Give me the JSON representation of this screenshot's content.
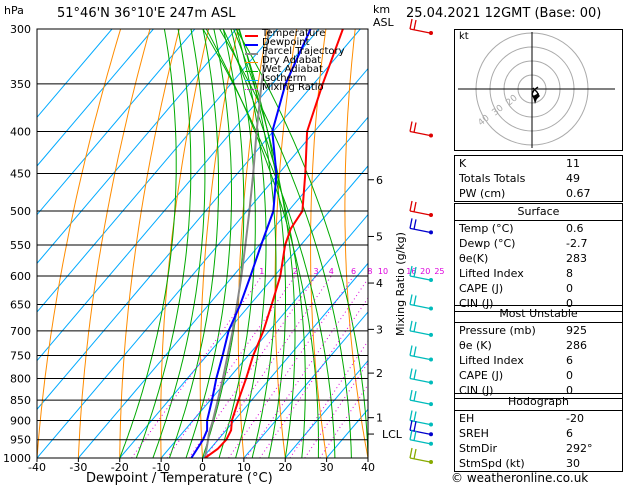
{
  "header": {
    "hpa_label": "hPa",
    "location": "51°46'N 36°10'E 247m ASL",
    "km_label": "km",
    "asl_label": "ASL",
    "datetime": "25.04.2021 12GMT (Base: 00)"
  },
  "legend": {
    "items": [
      {
        "label": "Temperature",
        "color": "#ff0000"
      },
      {
        "label": "Dewpoint",
        "color": "#0000ff"
      },
      {
        "label": "Parcel Trajectory",
        "color": "#888888"
      },
      {
        "label": "Dry Adiabat",
        "color": "#ff8c00"
      },
      {
        "label": "Wet Adiabat",
        "color": "#00aa00"
      },
      {
        "label": "Isotherm",
        "color": "#00aaff"
      },
      {
        "label": "Mixing Ratio",
        "color": "#dd00dd"
      }
    ]
  },
  "chart_data": {
    "type": "skew-t",
    "xlabel": "Dewpoint / Temperature (°C)",
    "ylabel": "hPa",
    "right_label": "Mixing Ratio (g/kg)",
    "xlim": [
      -40,
      40
    ],
    "ylim": [
      1000,
      300
    ],
    "x_ticks": [
      "-40",
      "-30",
      "-20",
      "-10",
      "0",
      "10",
      "20",
      "30",
      "40"
    ],
    "pressure_levels": [
      "300",
      "350",
      "400",
      "450",
      "500",
      "550",
      "600",
      "650",
      "700",
      "750",
      "800",
      "850",
      "900",
      "950",
      "1000"
    ],
    "km_ticks": [
      {
        "label": "6",
        "p": 458
      },
      {
        "label": "5",
        "p": 537
      },
      {
        "label": "4",
        "p": 612
      },
      {
        "label": "3",
        "p": 697
      },
      {
        "label": "2",
        "p": 788
      },
      {
        "label": "1",
        "p": 893
      }
    ],
    "lcl": {
      "label": "LCL",
      "p": 935
    },
    "mixing_ratio_labels": [
      "1",
      "2",
      "3",
      "4",
      "6",
      "8",
      "10",
      "16",
      "20",
      "25"
    ],
    "temperature": [
      {
        "p": 1000,
        "t": 0.6
      },
      {
        "p": 975,
        "t": 1.8
      },
      {
        "p": 950,
        "t": 2.0
      },
      {
        "p": 925,
        "t": 1.2
      },
      {
        "p": 900,
        "t": -0.6
      },
      {
        "p": 850,
        "t": -3.2
      },
      {
        "p": 800,
        "t": -5.8
      },
      {
        "p": 750,
        "t": -8.8
      },
      {
        "p": 700,
        "t": -11.4
      },
      {
        "p": 650,
        "t": -14.8
      },
      {
        "p": 600,
        "t": -18.6
      },
      {
        "p": 550,
        "t": -23.8
      },
      {
        "p": 525,
        "t": -25.8
      },
      {
        "p": 500,
        "t": -26.6
      },
      {
        "p": 450,
        "t": -33.6
      },
      {
        "p": 400,
        "t": -41.8
      },
      {
        "p": 350,
        "t": -47.8
      },
      {
        "p": 300,
        "t": -54.2
      }
    ],
    "dewpoint": [
      {
        "p": 1000,
        "t": -2.7
      },
      {
        "p": 950,
        "t": -3.6
      },
      {
        "p": 925,
        "t": -4.6
      },
      {
        "p": 900,
        "t": -6.6
      },
      {
        "p": 850,
        "t": -9.6
      },
      {
        "p": 800,
        "t": -13.0
      },
      {
        "p": 750,
        "t": -16.2
      },
      {
        "p": 700,
        "t": -19.8
      },
      {
        "p": 650,
        "t": -22.4
      },
      {
        "p": 600,
        "t": -25.8
      },
      {
        "p": 550,
        "t": -29.6
      },
      {
        "p": 500,
        "t": -33.6
      },
      {
        "p": 450,
        "t": -40.6
      },
      {
        "p": 400,
        "t": -50.2
      },
      {
        "p": 350,
        "t": -56.8
      },
      {
        "p": 300,
        "t": -62.0
      }
    ],
    "parcel": [
      {
        "p": 1000,
        "t": 0.6
      },
      {
        "p": 950,
        "t": -2.4
      },
      {
        "p": 935,
        "t": -3.4
      },
      {
        "p": 900,
        "t": -5.2
      },
      {
        "p": 850,
        "t": -8.2
      },
      {
        "p": 800,
        "t": -11.4
      },
      {
        "p": 750,
        "t": -15.0
      },
      {
        "p": 700,
        "t": -18.8
      },
      {
        "p": 650,
        "t": -23.2
      },
      {
        "p": 600,
        "t": -28.0
      },
      {
        "p": 550,
        "t": -33.4
      },
      {
        "p": 500,
        "t": -39.4
      },
      {
        "p": 450,
        "t": -46.2
      },
      {
        "p": 400,
        "t": -54.0
      },
      {
        "p": 350,
        "t": -62.6
      },
      {
        "p": 300,
        "t": -72.0
      }
    ]
  },
  "hodograph": {
    "label": "kt",
    "ring_labels": [
      "20",
      "30",
      "40"
    ]
  },
  "indices": {
    "top": [
      {
        "k": "K",
        "v": "11"
      },
      {
        "k": "Totals Totals",
        "v": "49"
      },
      {
        "k": "PW (cm)",
        "v": "0.67"
      }
    ],
    "surface_title": "Surface",
    "surface": [
      {
        "k": "Temp (°C)",
        "v": "0.6"
      },
      {
        "k": "Dewp (°C)",
        "v": "-2.7"
      },
      {
        "k": "θe(K)",
        "v": "283"
      },
      {
        "k": "Lifted Index",
        "v": "8"
      },
      {
        "k": "CAPE (J)",
        "v": "0"
      },
      {
        "k": "CIN (J)",
        "v": "0"
      }
    ],
    "mu_title": "Most Unstable",
    "mu": [
      {
        "k": "Pressure (mb)",
        "v": "925"
      },
      {
        "k": "θe (K)",
        "v": "286"
      },
      {
        "k": "Lifted Index",
        "v": "6"
      },
      {
        "k": "CAPE (J)",
        "v": "0"
      },
      {
        "k": "CIN (J)",
        "v": "0"
      }
    ],
    "hodo_title": "Hodograph",
    "hodo": [
      {
        "k": "EH",
        "v": "-20"
      },
      {
        "k": "SREH",
        "v": "6"
      },
      {
        "k": "StmDir",
        "v": "292°"
      },
      {
        "k": "StmSpd (kt)",
        "v": "30"
      }
    ]
  },
  "footer": {
    "copyright": "© weatheronline.co.uk"
  },
  "colors": {
    "temperature": "#ff0000",
    "dewpoint": "#0000ff",
    "parcel": "#888888",
    "dry": "#ff8c00",
    "wet": "#00aa00",
    "iso": "#00aaff",
    "mix": "#dd00dd",
    "wind_low": "#00bbbb",
    "wind_high": "#dd0000",
    "wind_mid": "#0000cc"
  }
}
